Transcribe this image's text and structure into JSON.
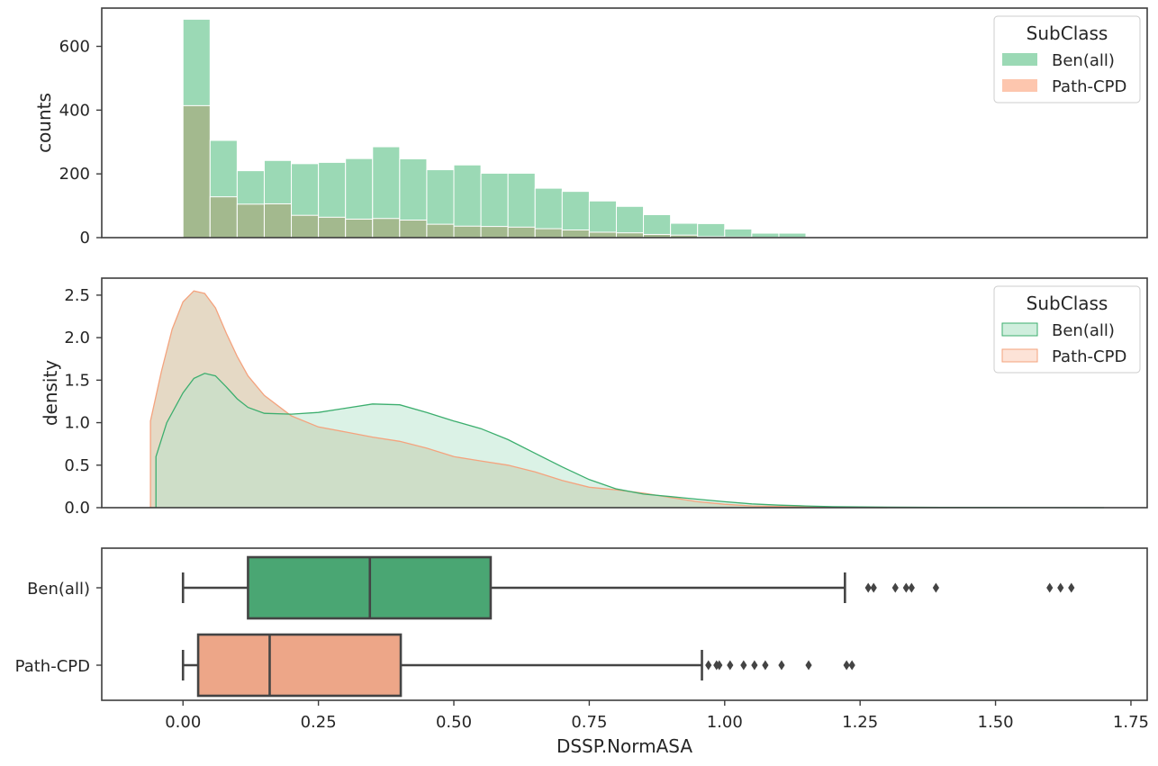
{
  "chart_data": [
    {
      "type": "histogram",
      "panel": "top",
      "xlabel": "",
      "ylabel": "counts",
      "xlim": [
        -0.15,
        1.78
      ],
      "ylim": [
        0,
        720
      ],
      "yticks": [
        0,
        200,
        400,
        600
      ],
      "bin_width": 0.05,
      "bin_starts": [
        0.0,
        0.05,
        0.1,
        0.15,
        0.2,
        0.25,
        0.3,
        0.35,
        0.4,
        0.45,
        0.5,
        0.55,
        0.6,
        0.65,
        0.7,
        0.75,
        0.8,
        0.85,
        0.9,
        0.95,
        1.0,
        1.05,
        1.1
      ],
      "legend": {
        "title": "SubClass",
        "position": "top-right"
      },
      "series": [
        {
          "name": "Ben(all)",
          "color": "#9bd9b5",
          "values": [
            685,
            305,
            210,
            242,
            232,
            236,
            248,
            285,
            247,
            213,
            228,
            202,
            202,
            155,
            145,
            115,
            98,
            72,
            45,
            44,
            27,
            14,
            14
          ]
        },
        {
          "name": "Path-CPD",
          "color": "#fdc6ae",
          "values": [
            414,
            128,
            105,
            106,
            70,
            64,
            58,
            60,
            55,
            42,
            36,
            35,
            33,
            28,
            24,
            17,
            15,
            10,
            8,
            3,
            2,
            1,
            1
          ]
        }
      ],
      "overlap_color": "#a3b98e"
    },
    {
      "type": "area",
      "panel": "middle",
      "xlabel": "",
      "ylabel": "density",
      "xlim": [
        -0.15,
        1.78
      ],
      "ylim": [
        0,
        2.7
      ],
      "yticks": [
        "0.0",
        "0.5",
        "1.0",
        "1.5",
        "2.0",
        "2.5"
      ],
      "legend": {
        "title": "SubClass",
        "position": "top-right"
      },
      "series": [
        {
          "name": "Ben(all)",
          "line_color": "#3cae6e",
          "fill_color": "#cfeedd",
          "x": [
            -0.05,
            -0.05,
            -0.03,
            0.0,
            0.02,
            0.04,
            0.06,
            0.08,
            0.1,
            0.12,
            0.15,
            0.2,
            0.25,
            0.3,
            0.35,
            0.4,
            0.45,
            0.5,
            0.55,
            0.6,
            0.65,
            0.7,
            0.75,
            0.8,
            0.85,
            0.9,
            0.95,
            1.0,
            1.05,
            1.1,
            1.15,
            1.2,
            1.3,
            1.4,
            1.5,
            1.6,
            1.7
          ],
          "y": [
            0,
            0.6,
            1.0,
            1.35,
            1.52,
            1.58,
            1.55,
            1.42,
            1.28,
            1.18,
            1.11,
            1.1,
            1.12,
            1.17,
            1.22,
            1.21,
            1.12,
            1.02,
            0.93,
            0.8,
            0.64,
            0.48,
            0.33,
            0.22,
            0.16,
            0.13,
            0.1,
            0.07,
            0.045,
            0.03,
            0.02,
            0.012,
            0.006,
            0.004,
            0.002,
            0.001,
            0
          ]
        },
        {
          "name": "Path-CPD",
          "line_color": "#f4a37e",
          "fill_color": "#fde3d7",
          "x": [
            -0.06,
            -0.06,
            -0.04,
            -0.02,
            0.0,
            0.02,
            0.04,
            0.06,
            0.08,
            0.1,
            0.12,
            0.15,
            0.2,
            0.25,
            0.3,
            0.35,
            0.4,
            0.45,
            0.5,
            0.55,
            0.6,
            0.65,
            0.7,
            0.75,
            0.8,
            0.85,
            0.9,
            0.95,
            1.0,
            1.05,
            1.1,
            1.15,
            1.2,
            1.25,
            1.3
          ],
          "y": [
            0,
            1.02,
            1.6,
            2.1,
            2.42,
            2.55,
            2.52,
            2.35,
            2.05,
            1.78,
            1.55,
            1.32,
            1.08,
            0.95,
            0.89,
            0.83,
            0.78,
            0.7,
            0.6,
            0.55,
            0.5,
            0.42,
            0.32,
            0.24,
            0.21,
            0.17,
            0.12,
            0.07,
            0.04,
            0.02,
            0.015,
            0.008,
            0.004,
            0.002,
            0
          ]
        }
      ]
    },
    {
      "type": "box",
      "panel": "bottom",
      "xlabel": "DSSP.NormASA",
      "ylabel": "",
      "xlim": [
        -0.15,
        1.78
      ],
      "xticks": [
        "0.00",
        "0.25",
        "0.50",
        "0.75",
        "1.00",
        "1.25",
        "1.50",
        "1.75"
      ],
      "categories": [
        "Ben(all)",
        "Path-CPD"
      ],
      "series": [
        {
          "name": "Ben(all)",
          "color": "#4aa673",
          "whisker_low": 0.0,
          "q1": 0.12,
          "median": 0.345,
          "q3": 0.568,
          "whisker_high": 1.222,
          "outliers": [
            1.265,
            1.275,
            1.315,
            1.335,
            1.345,
            1.39,
            1.6,
            1.62,
            1.64
          ]
        },
        {
          "name": "Path-CPD",
          "color": "#eda688",
          "whisker_low": 0.0,
          "q1": 0.028,
          "median": 0.16,
          "q3": 0.402,
          "whisker_high": 0.958,
          "outliers": [
            0.97,
            0.985,
            0.99,
            1.01,
            1.035,
            1.055,
            1.075,
            1.105,
            1.155,
            1.225,
            1.235
          ]
        }
      ]
    }
  ]
}
